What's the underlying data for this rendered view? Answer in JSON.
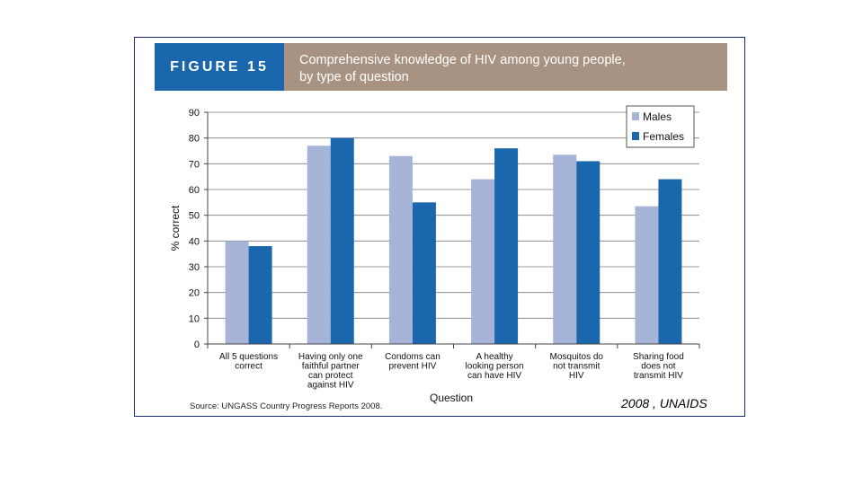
{
  "figure": {
    "badge": "FIGURE 15",
    "title_line1": "Comprehensive knowledge of HIV among young people,",
    "title_line2": "by type of question"
  },
  "source": "Source: UNGASS Country Progress Reports 2008.",
  "credit": "2008 , UNAIDS",
  "colors": {
    "males": "#a6b4d8",
    "females": "#1a67ad",
    "badge": "#1a67ad",
    "title_bar": "#a89382"
  },
  "chart_data": {
    "type": "bar",
    "title": "Comprehensive knowledge of HIV among young people, by type of question",
    "xlabel": "Question",
    "ylabel": "% correct",
    "ylim": [
      0,
      90
    ],
    "yticks": [
      0,
      10,
      20,
      30,
      40,
      50,
      60,
      70,
      80,
      90
    ],
    "grid": true,
    "legend": "top-right",
    "categories": [
      [
        "All 5 questions",
        "correct"
      ],
      [
        "Having only one",
        "faithful partner",
        "can protect",
        "against HIV"
      ],
      [
        "Condoms can",
        "prevent HIV"
      ],
      [
        "A healthy",
        "looking person",
        "can have HIV"
      ],
      [
        "Mosquitos do",
        "not transmit",
        "HIV"
      ],
      [
        "Sharing food",
        "does not",
        "transmit HIV"
      ]
    ],
    "series": [
      {
        "name": "Males",
        "values": [
          40,
          77,
          73,
          64,
          73.5,
          53.5
        ]
      },
      {
        "name": "Females",
        "values": [
          38,
          80,
          55,
          76,
          71,
          64
        ]
      }
    ]
  }
}
